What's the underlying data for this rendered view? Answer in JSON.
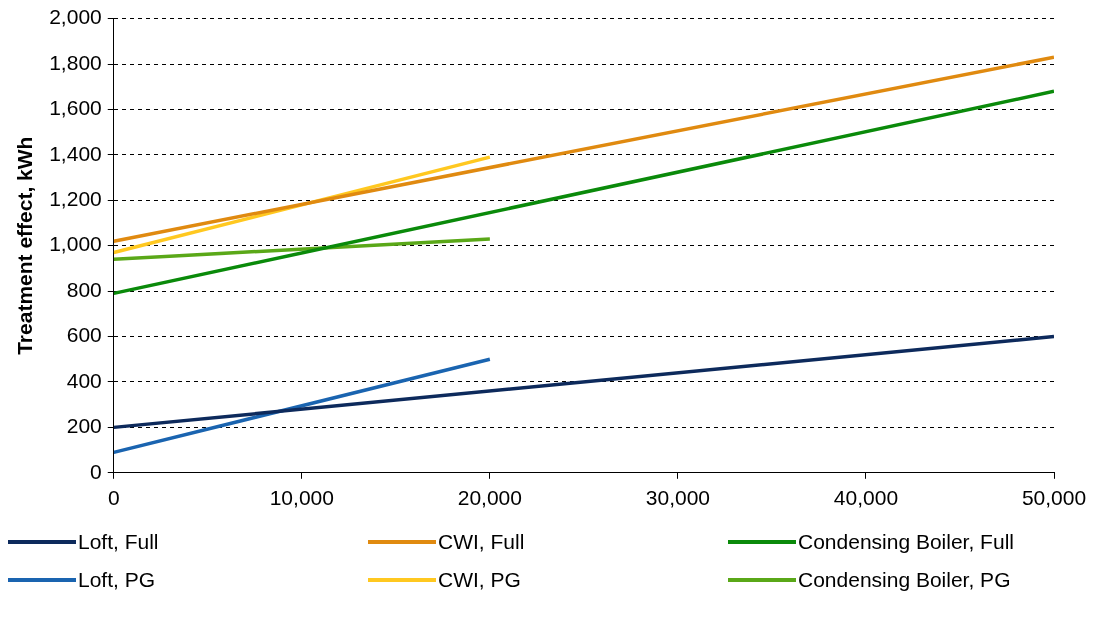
{
  "chart_data": {
    "type": "line",
    "ylabel": "Treatment effect, kWh",
    "xlim": [
      0,
      50000
    ],
    "xticks": [
      0,
      {
        "value": 10000,
        "label": "10,000"
      },
      {
        "value": 20000,
        "label": "20,000"
      },
      {
        "value": 30000,
        "label": "30,000"
      },
      {
        "value": 40000,
        "label": "40,000"
      },
      {
        "value": 50000,
        "label": "50,000"
      }
    ],
    "ylim": [
      0,
      2000
    ],
    "yticks": [
      0,
      200,
      400,
      600,
      800,
      {
        "value": 1000,
        "label": "1,000"
      },
      {
        "value": 1200,
        "label": "1,200"
      },
      {
        "value": 1400,
        "label": "1,400"
      },
      {
        "value": 1600,
        "label": "1,600"
      },
      {
        "value": 1800,
        "label": "1,800"
      },
      {
        "value": 2000,
        "label": "2,000"
      }
    ],
    "grid": "y",
    "legend": "bottom",
    "marker": "none",
    "line_style": "solid",
    "series": [
      {
        "name": "Loft, Full",
        "color": "#0d2a5c",
        "x": [
          0,
          50000
        ],
        "values": [
          200,
          600
        ]
      },
      {
        "name": "CWI, Full",
        "color": "#e08a10",
        "x": [
          0,
          50000
        ],
        "values": [
          1020,
          1830
        ]
      },
      {
        "name": "Condensing Boiler, Full",
        "color": "#0a8a0a",
        "x": [
          0,
          50000
        ],
        "values": [
          790,
          1680
        ]
      },
      {
        "name": "Loft, PG",
        "color": "#1a64b0",
        "x": [
          0,
          20000
        ],
        "values": [
          90,
          500
        ]
      },
      {
        "name": "CWI, PG",
        "color": "#ffc820",
        "x": [
          0,
          20000
        ],
        "values": [
          970,
          1390
        ]
      },
      {
        "name": "Condensing Boiler, PG",
        "color": "#5aa818",
        "x": [
          0,
          20000
        ],
        "values": [
          940,
          1030
        ]
      }
    ]
  }
}
